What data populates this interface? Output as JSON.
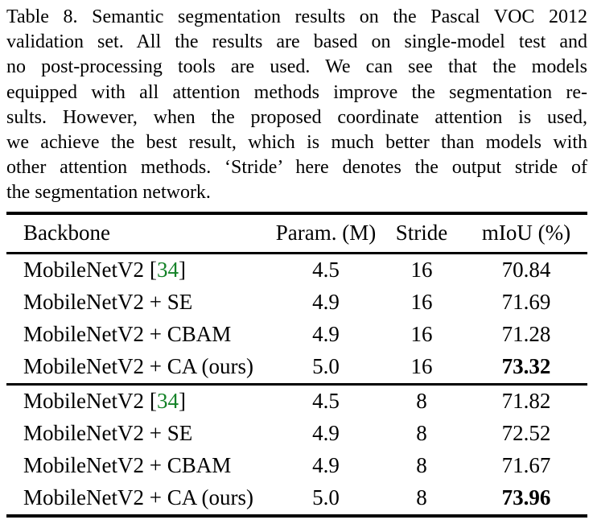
{
  "caption": {
    "lines": [
      "Table 8. Semantic segmentation results on the Pascal VOC 2012",
      "validation set. All the results are based on single-model test and",
      "no post-processing tools are used. We can see that the models",
      "equipped with all attention methods improve the segmentation re-",
      "sults. However, when the proposed coordinate attention is used,",
      "we achieve the best result, which is much better than models with",
      "other attention methods. ‘Stride’ here denotes the output stride of",
      "the segmentation network."
    ]
  },
  "table": {
    "columns": [
      "Backbone",
      "Param. (M)",
      "Stride",
      "mIoU (%)"
    ],
    "citation_brackets": [
      "[",
      "]"
    ],
    "groups": [
      {
        "rows": [
          {
            "backbone": "MobileNetV2",
            "cite_num": "34",
            "param": "4.5",
            "stride": "16",
            "miou": "70.84",
            "miou_bold": false
          },
          {
            "backbone": "MobileNetV2 + SE",
            "cite_num": "",
            "param": "4.9",
            "stride": "16",
            "miou": "71.69",
            "miou_bold": false
          },
          {
            "backbone": "MobileNetV2 + CBAM",
            "cite_num": "",
            "param": "4.9",
            "stride": "16",
            "miou": "71.28",
            "miou_bold": false
          },
          {
            "backbone": "MobileNetV2 + CA (ours)",
            "cite_num": "",
            "param": "5.0",
            "stride": "16",
            "miou": "73.32",
            "miou_bold": true
          }
        ]
      },
      {
        "rows": [
          {
            "backbone": "MobileNetV2",
            "cite_num": "34",
            "param": "4.5",
            "stride": "8",
            "miou": "71.82",
            "miou_bold": false
          },
          {
            "backbone": "MobileNetV2 + SE",
            "cite_num": "",
            "param": "4.9",
            "stride": "8",
            "miou": "72.52",
            "miou_bold": false
          },
          {
            "backbone": "MobileNetV2 + CBAM",
            "cite_num": "",
            "param": "4.9",
            "stride": "8",
            "miou": "71.67",
            "miou_bold": false
          },
          {
            "backbone": "MobileNetV2 + CA (ours)",
            "cite_num": "",
            "param": "5.0",
            "stride": "8",
            "miou": "73.96",
            "miou_bold": true
          }
        ]
      }
    ]
  },
  "colors": {
    "citation_green": "#148228",
    "text": "#000000",
    "rule": "#000000"
  }
}
